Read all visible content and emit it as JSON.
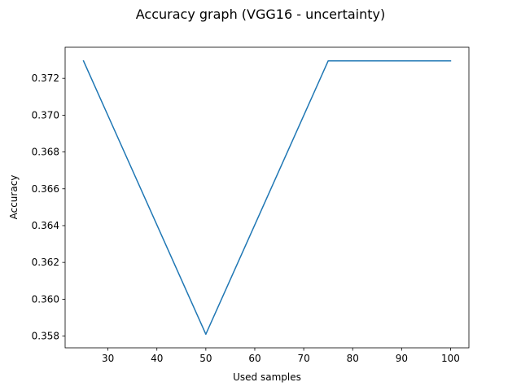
{
  "chart_data": {
    "type": "line",
    "title": "Accuracy graph (VGG16 - uncertainty)",
    "xlabel": "Used samples",
    "ylabel": "Accuracy",
    "x": [
      25,
      50,
      75,
      100
    ],
    "series": [
      {
        "values": [
          0.37295,
          0.3581,
          0.37295,
          0.37295
        ]
      }
    ],
    "xlim": [
      21.25,
      103.75
    ],
    "ylim": [
      0.35736,
      0.37369
    ],
    "xticks": [
      30,
      40,
      50,
      60,
      70,
      80,
      90,
      100
    ],
    "xtick_labels": [
      "30",
      "40",
      "50",
      "60",
      "70",
      "80",
      "90",
      "100"
    ],
    "yticks": [
      0.358,
      0.36,
      0.362,
      0.364,
      0.366,
      0.368,
      0.37,
      0.372
    ],
    "ytick_labels": [
      "0.358",
      "0.360",
      "0.362",
      "0.364",
      "0.366",
      "0.368",
      "0.370",
      "0.372"
    ],
    "grid": false,
    "colors": {
      "series": "#1f77b4",
      "axes": "#000000"
    }
  }
}
